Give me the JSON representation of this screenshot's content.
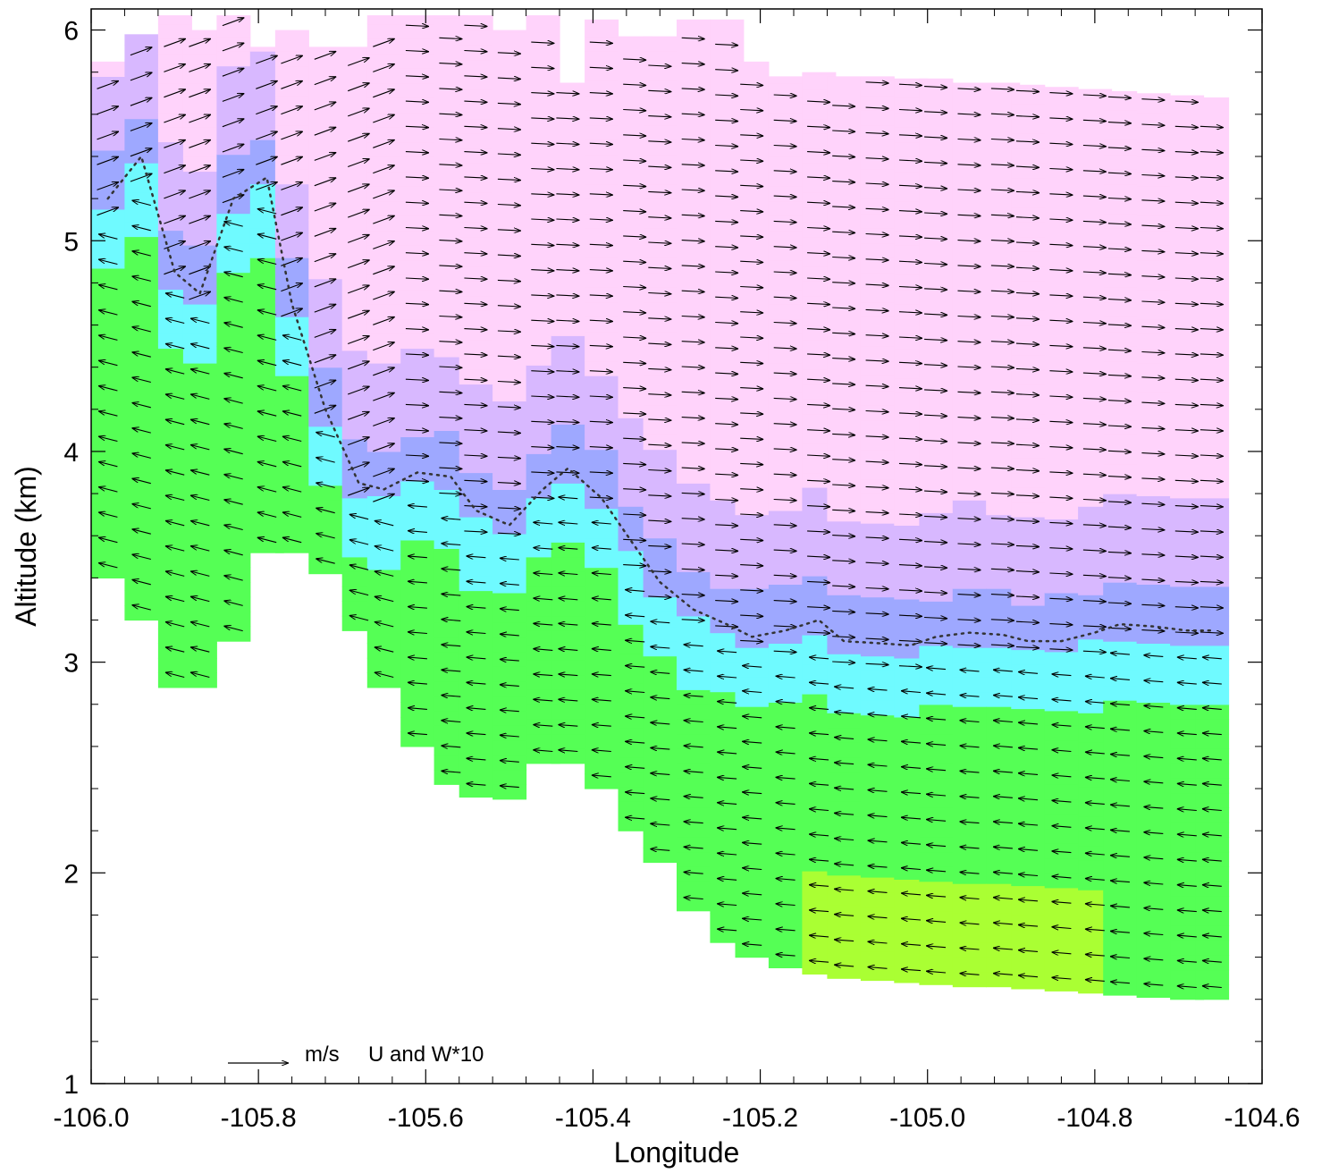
{
  "chart_data": {
    "type": "vector-field",
    "xlabel": "Longitude",
    "ylabel": "Altitude (km)",
    "xlim": [
      -106.0,
      -104.6
    ],
    "ylim": [
      1.0,
      6.1
    ],
    "x_ticks": [
      "-106.0",
      "-105.8",
      "-105.6",
      "-105.4",
      "-105.2",
      "-105.0",
      "-104.8",
      "-104.6"
    ],
    "y_ticks": [
      "1",
      "2",
      "3",
      "4",
      "5",
      "6"
    ],
    "x_tick_values": [
      -106.0,
      -105.8,
      -105.6,
      -105.4,
      -105.2,
      -105.0,
      -104.8,
      -104.6
    ],
    "y_tick_values": [
      1,
      2,
      3,
      4,
      5,
      6
    ],
    "legend": {
      "units": "m/s",
      "text": "U and W*10"
    },
    "grid": false,
    "columns_lon": [
      -105.98,
      -105.94,
      -105.9,
      -105.87,
      -105.83,
      -105.79,
      -105.76,
      -105.72,
      -105.68,
      -105.65,
      -105.61,
      -105.57,
      -105.54,
      -105.5,
      -105.46,
      -105.43,
      -105.39,
      -105.35,
      -105.32,
      -105.28,
      -105.24,
      -105.21,
      -105.17,
      -105.13,
      -105.1,
      -105.06,
      -105.02,
      -104.99,
      -104.95,
      -104.91,
      -104.88,
      -104.84,
      -104.8,
      -104.77,
      -104.73,
      -104.69,
      -104.66
    ],
    "column_bottom_km": [
      3.4,
      3.2,
      2.88,
      2.88,
      3.1,
      3.52,
      3.52,
      3.42,
      3.15,
      2.88,
      2.6,
      2.42,
      2.36,
      2.35,
      2.52,
      2.52,
      2.4,
      2.2,
      2.05,
      1.82,
      1.67,
      1.6,
      1.55,
      1.52,
      1.5,
      1.49,
      1.48,
      1.47,
      1.46,
      1.46,
      1.45,
      1.44,
      1.43,
      1.42,
      1.41,
      1.4,
      1.4
    ],
    "column_top_km": [
      5.85,
      5.98,
      6.07,
      6.0,
      6.07,
      5.92,
      6.0,
      5.92,
      5.92,
      6.07,
      6.07,
      6.07,
      6.07,
      6.0,
      6.07,
      5.75,
      6.05,
      5.97,
      5.97,
      6.05,
      6.05,
      5.85,
      5.78,
      5.8,
      5.78,
      5.78,
      5.77,
      5.77,
      5.75,
      5.75,
      5.74,
      5.73,
      5.72,
      5.71,
      5.7,
      5.69,
      5.68
    ],
    "boundary_km": [
      5.2,
      5.4,
      4.85,
      4.75,
      5.2,
      5.3,
      4.7,
      4.2,
      3.85,
      3.82,
      3.9,
      3.88,
      3.72,
      3.65,
      3.82,
      3.92,
      3.78,
      3.55,
      3.38,
      3.25,
      3.18,
      3.12,
      3.15,
      3.2,
      3.1,
      3.09,
      3.08,
      3.12,
      3.14,
      3.13,
      3.1,
      3.1,
      3.14,
      3.18,
      3.17,
      3.15,
      3.15
    ],
    "colors": {
      "upper": "#ffd3fb",
      "mid": "#d8b8ff",
      "boundary": "#9ea8ff",
      "cyan": "#6ffaff",
      "green": "#55ff55",
      "yellow": "#aaff33"
    }
  }
}
